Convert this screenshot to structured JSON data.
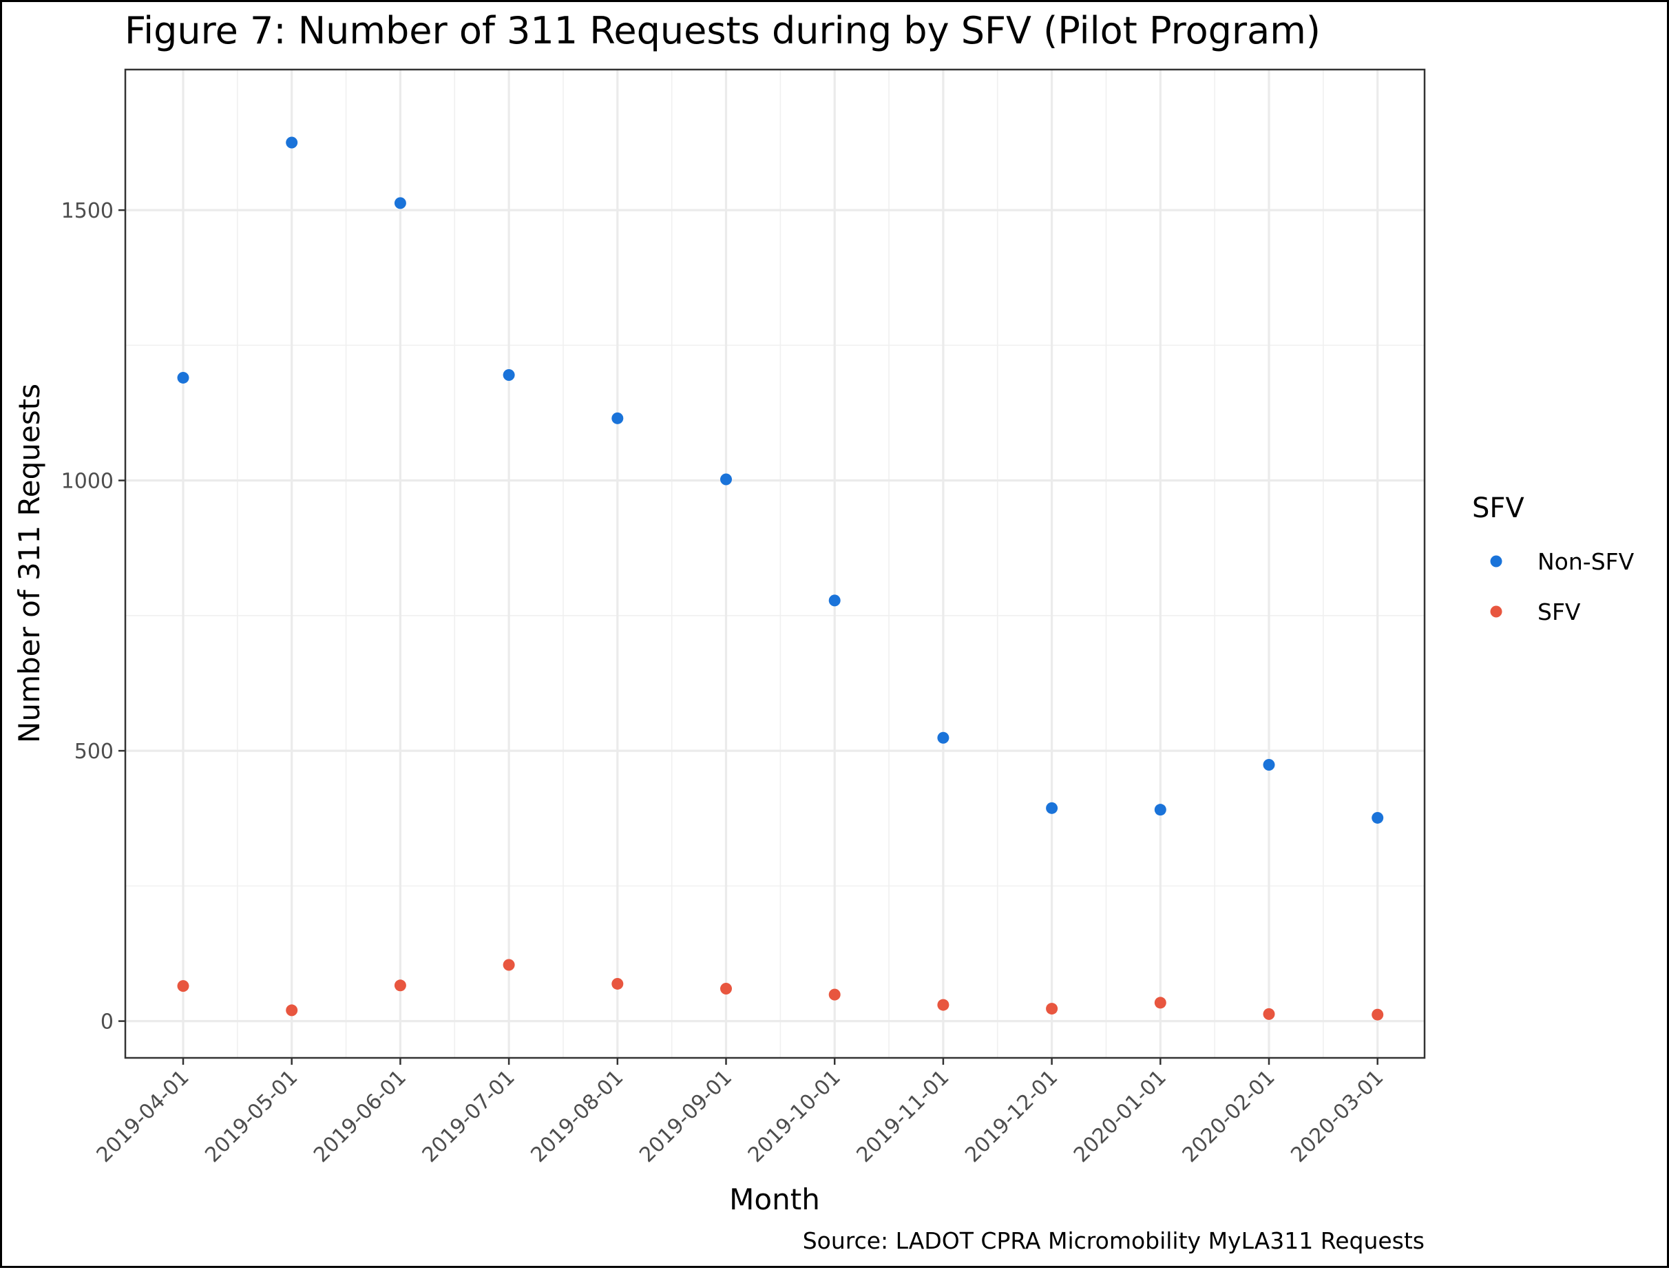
{
  "chart_data": {
    "type": "scatter",
    "title": "Figure 7: Number of 311 Requests during by SFV (Pilot Program)",
    "xlabel": "Month",
    "ylabel": "Number of 311 Requests",
    "caption": "Source: LADOT CPRA Micromobility MyLA311 Requests",
    "categories": [
      "2019-04-01",
      "2019-05-01",
      "2019-06-01",
      "2019-07-01",
      "2019-08-01",
      "2019-09-01",
      "2019-10-01",
      "2019-11-01",
      "2019-12-01",
      "2020-01-01",
      "2020-02-01",
      "2020-03-01"
    ],
    "y_ticks": [
      0,
      500,
      1000,
      1500
    ],
    "ylim": [
      -68,
      1760
    ],
    "grid": true,
    "legend": {
      "title": "SFV",
      "placement": "right"
    },
    "series": [
      {
        "name": "Non-SFV",
        "color": "#1a73d9",
        "values": [
          1190,
          1625,
          1513,
          1195,
          1115,
          1002,
          778,
          524,
          394,
          391,
          474,
          376
        ]
      },
      {
        "name": "SFV",
        "color": "#e8563f",
        "values": [
          65,
          20,
          66,
          104,
          69,
          60,
          49,
          30,
          23,
          34,
          13,
          12
        ]
      }
    ]
  }
}
